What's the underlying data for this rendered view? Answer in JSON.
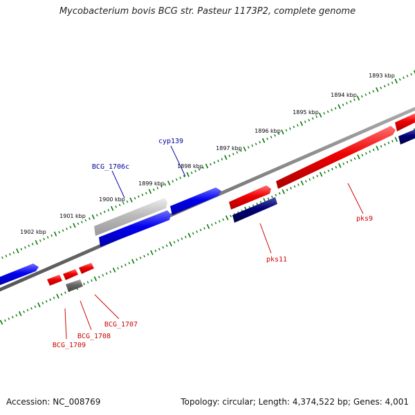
{
  "title": "Mycobacterium bovis BCG str. Pasteur 1173P2, complete genome",
  "footer": {
    "accession": "Accession: NC_008769",
    "topology": "Topology: circular; Length: 4,374,522 bp; Genes: 4,001"
  },
  "colors": {
    "forward_gene": "#0000ee",
    "reverse_gene": "#ee0000",
    "dark_gene": "#000077",
    "pseudo_gene": "#666666",
    "light_gene": "#bbbbbb",
    "backbone": "#777777",
    "tick": "#007700",
    "forward_label": "#000099",
    "reverse_label": "#cc0000"
  },
  "scale_labels": [
    "1893 kbp",
    "1894 kbp",
    "1895 kbp",
    "1896 kbp",
    "1897 kbp",
    "1898 kbp",
    "1899 kbp",
    "1900 kbp",
    "1901 kbp",
    "1902 kbp"
  ],
  "gene_labels": [
    "BCG_1706c",
    "cyp139",
    "pks9",
    "pks11",
    "BCG_1707",
    "BCG_1708",
    "BCG_1709"
  ]
}
